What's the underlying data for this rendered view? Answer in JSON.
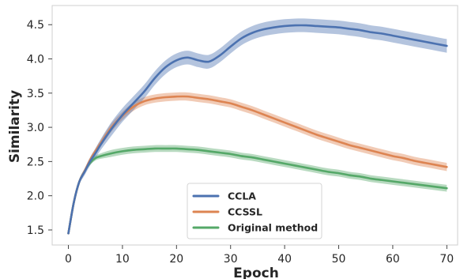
{
  "chart_data": {
    "type": "line",
    "title": "",
    "xlabel": "Epoch",
    "ylabel": "Similarity",
    "xlim": [
      -3,
      72
    ],
    "ylim": [
      1.28,
      4.78
    ],
    "xticks": [
      "0",
      "10",
      "20",
      "30",
      "40",
      "50",
      "60",
      "70"
    ],
    "yticks": [
      "1.5",
      "2.0",
      "2.5",
      "3.0",
      "3.5",
      "4.0",
      "4.5"
    ],
    "grid": false,
    "legend_position": "lower-center",
    "series": [
      {
        "name": "CCLA",
        "color": "#4c72b0",
        "band": 0.1,
        "x": [
          0,
          1,
          2,
          3,
          4,
          5,
          6,
          8,
          10,
          12,
          14,
          16,
          18,
          20,
          22,
          24,
          26,
          28,
          30,
          32,
          34,
          36,
          38,
          40,
          42,
          44,
          46,
          48,
          50,
          52,
          54,
          56,
          58,
          60,
          62,
          64,
          66,
          68,
          70
        ],
        "y": [
          1.45,
          1.9,
          2.2,
          2.35,
          2.5,
          2.62,
          2.75,
          2.98,
          3.18,
          3.35,
          3.52,
          3.72,
          3.88,
          3.98,
          4.02,
          3.98,
          3.96,
          4.05,
          4.18,
          4.3,
          4.38,
          4.43,
          4.46,
          4.48,
          4.49,
          4.49,
          4.48,
          4.47,
          4.46,
          4.44,
          4.42,
          4.39,
          4.37,
          4.34,
          4.31,
          4.28,
          4.25,
          4.22,
          4.19
        ]
      },
      {
        "name": "CCSSL",
        "color": "#dd8452",
        "band": 0.06,
        "x": [
          0,
          1,
          2,
          3,
          4,
          5,
          6,
          8,
          10,
          12,
          14,
          16,
          18,
          20,
          22,
          24,
          26,
          28,
          30,
          32,
          34,
          36,
          38,
          40,
          42,
          44,
          46,
          48,
          50,
          52,
          54,
          56,
          58,
          60,
          62,
          64,
          66,
          68,
          70
        ],
        "y": [
          1.45,
          1.9,
          2.2,
          2.36,
          2.52,
          2.65,
          2.77,
          3.0,
          3.17,
          3.3,
          3.38,
          3.42,
          3.44,
          3.45,
          3.45,
          3.43,
          3.41,
          3.38,
          3.35,
          3.3,
          3.25,
          3.19,
          3.13,
          3.07,
          3.01,
          2.95,
          2.89,
          2.84,
          2.79,
          2.74,
          2.7,
          2.66,
          2.62,
          2.58,
          2.55,
          2.51,
          2.48,
          2.45,
          2.42
        ]
      },
      {
        "name": "Original method",
        "color": "#55a868",
        "band": 0.05,
        "x": [
          0,
          1,
          2,
          3,
          4,
          5,
          6,
          8,
          10,
          12,
          14,
          16,
          18,
          20,
          22,
          24,
          26,
          28,
          30,
          32,
          34,
          36,
          38,
          40,
          42,
          44,
          46,
          48,
          50,
          52,
          54,
          56,
          58,
          60,
          62,
          64,
          66,
          68,
          70
        ],
        "y": [
          1.45,
          1.9,
          2.2,
          2.36,
          2.48,
          2.55,
          2.58,
          2.62,
          2.65,
          2.67,
          2.68,
          2.69,
          2.69,
          2.69,
          2.68,
          2.67,
          2.65,
          2.63,
          2.61,
          2.58,
          2.56,
          2.53,
          2.5,
          2.47,
          2.44,
          2.41,
          2.38,
          2.35,
          2.33,
          2.3,
          2.28,
          2.25,
          2.23,
          2.21,
          2.19,
          2.17,
          2.15,
          2.13,
          2.11
        ]
      }
    ]
  }
}
